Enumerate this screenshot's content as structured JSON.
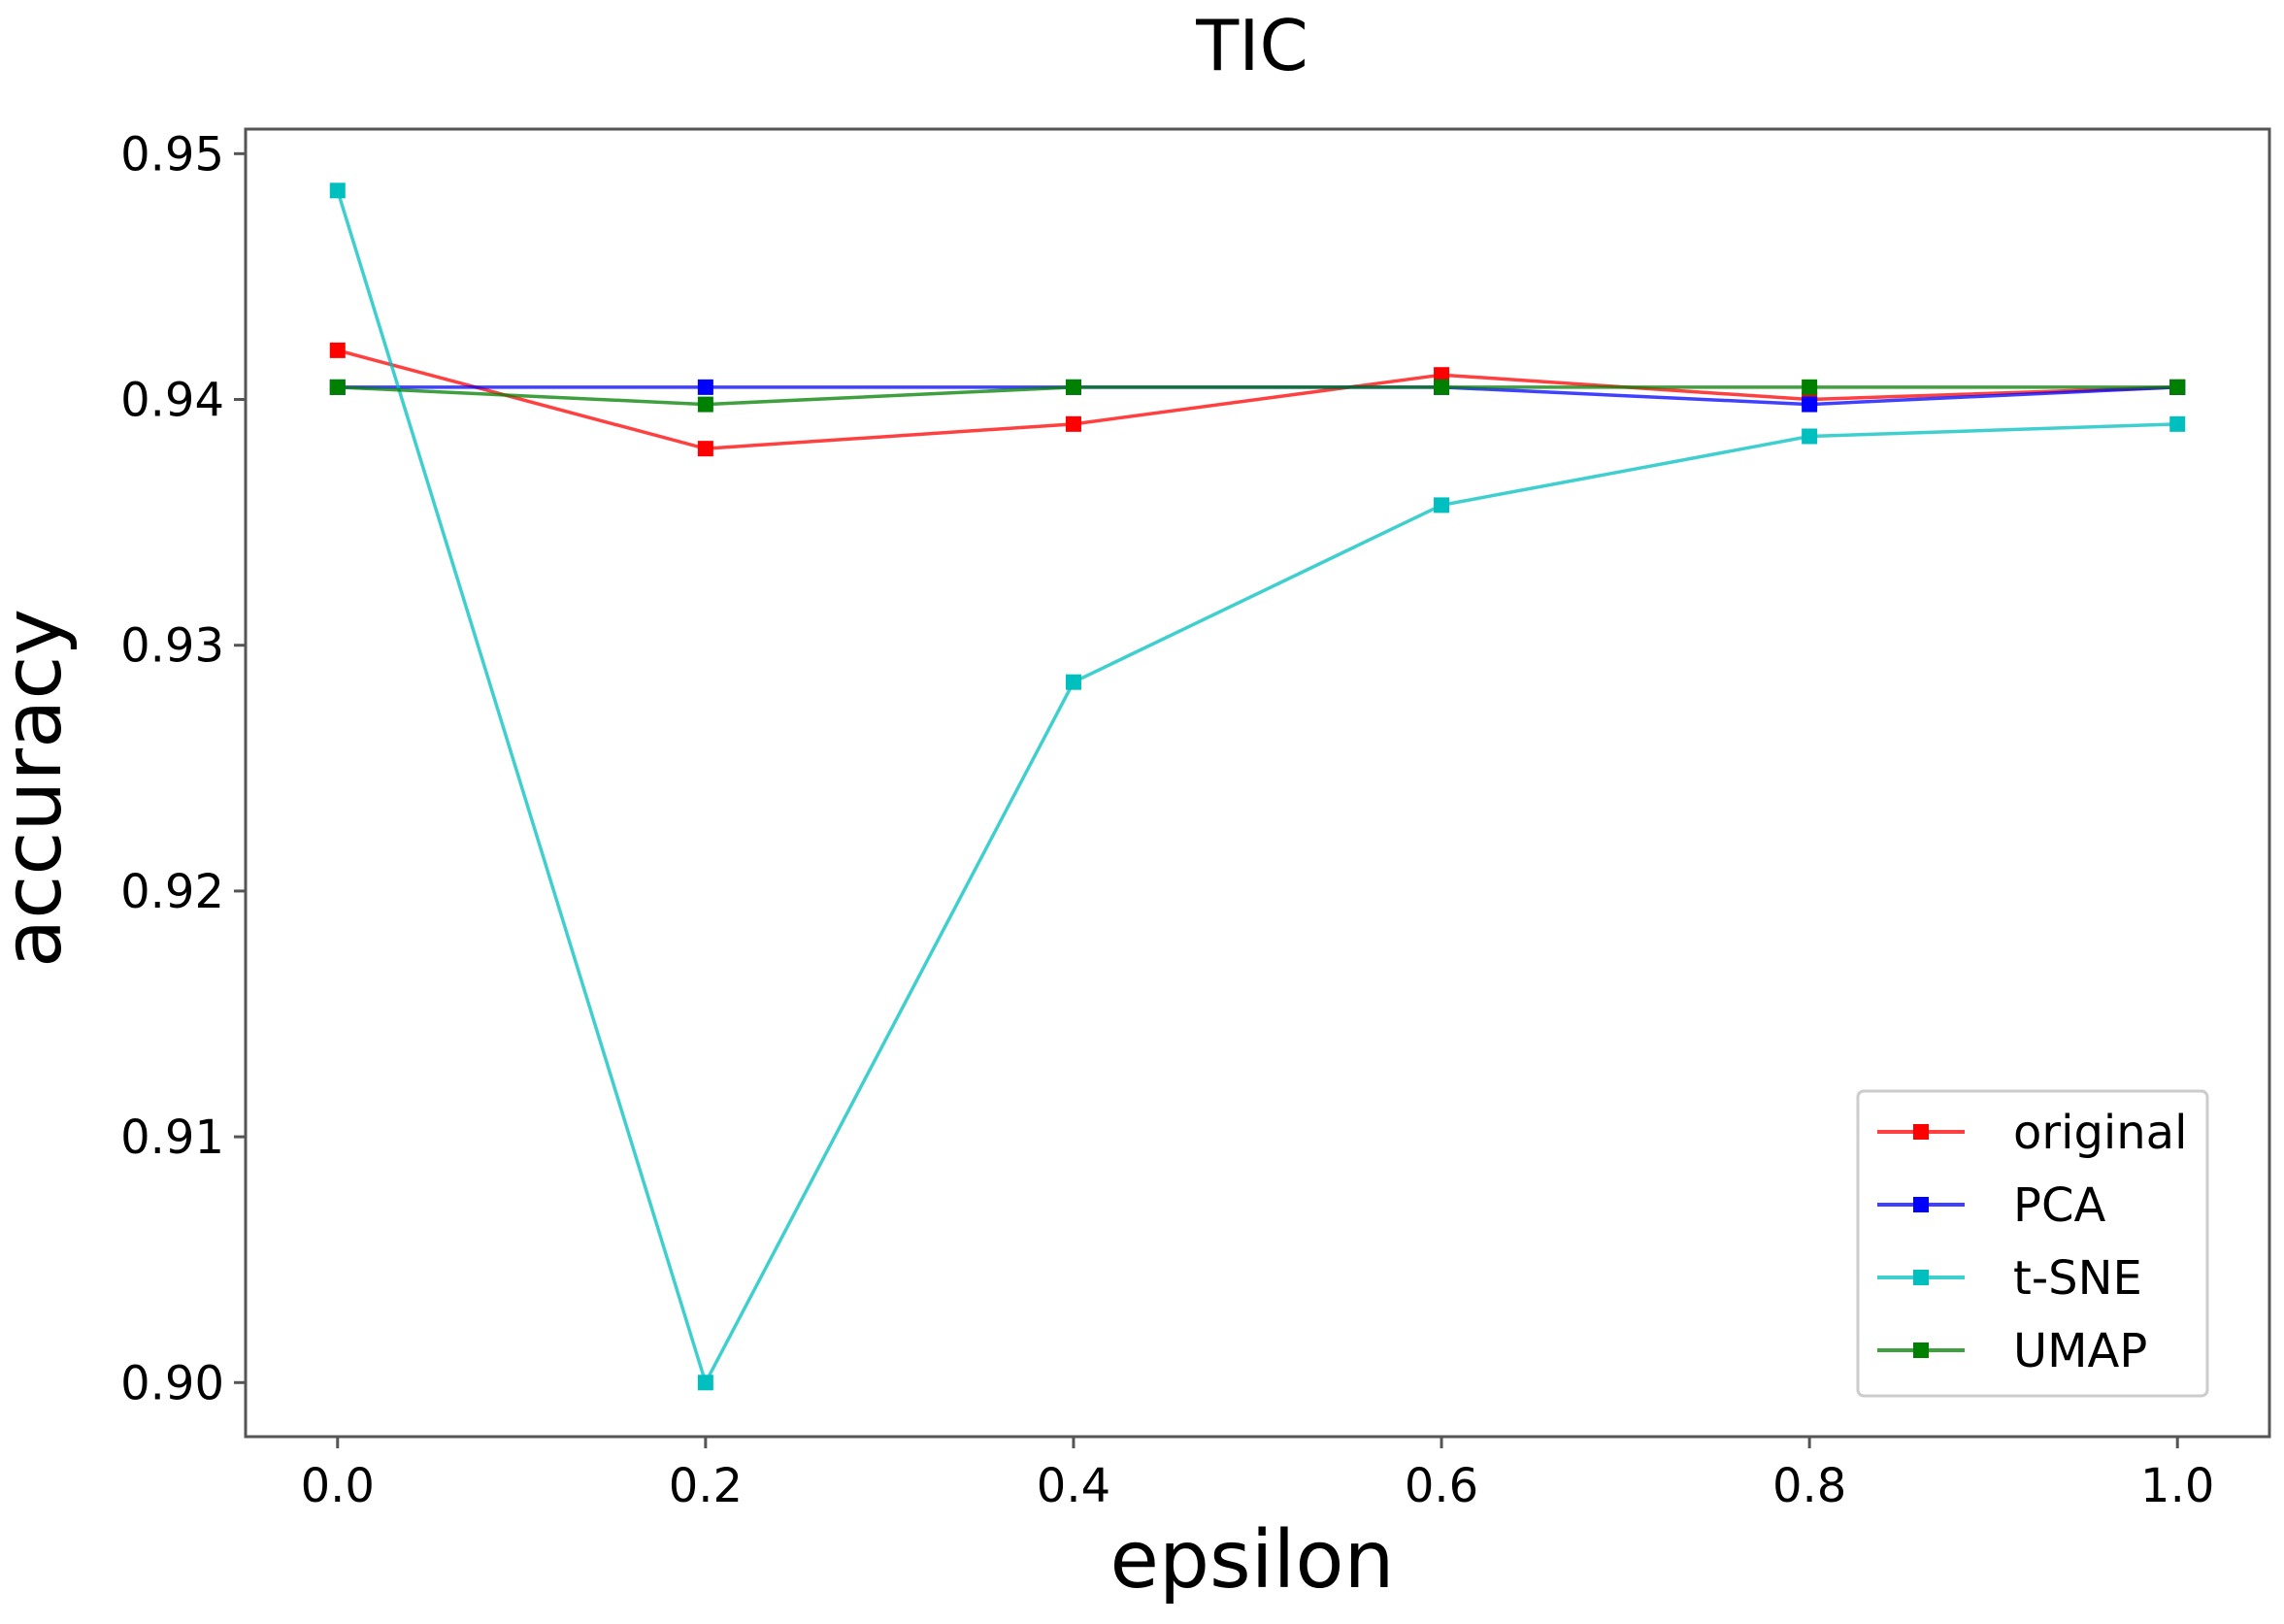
{
  "chart_data": {
    "type": "line",
    "title": "TIC",
    "xlabel": "epsilon",
    "ylabel": "accuracy",
    "x": [
      0.0,
      0.2,
      0.4,
      0.6,
      0.8,
      1.0
    ],
    "x_tick_labels": [
      "0.0",
      "0.2",
      "0.4",
      "0.6",
      "0.8",
      "1.0"
    ],
    "y_ticks": [
      0.9,
      0.91,
      0.92,
      0.93,
      0.94,
      0.95
    ],
    "y_tick_labels": [
      "0.90",
      "0.91",
      "0.92",
      "0.93",
      "0.94",
      "0.95"
    ],
    "xlim": [
      -0.05,
      1.05
    ],
    "ylim": [
      0.8978,
      0.951
    ],
    "grid": false,
    "legend_position": "lower-right",
    "series": [
      {
        "name": "original",
        "color": "#ff0000",
        "values": [
          0.942,
          0.938,
          0.939,
          0.941,
          0.94,
          0.9405
        ]
      },
      {
        "name": "PCA",
        "color": "#0000ff",
        "values": [
          0.9405,
          0.9405,
          0.9405,
          0.9405,
          0.9398,
          0.9405
        ]
      },
      {
        "name": "t-SNE",
        "color": "#00bfbf",
        "values": [
          0.9485,
          0.9,
          0.9285,
          0.9357,
          0.9385,
          0.939
        ]
      },
      {
        "name": "UMAP",
        "color": "#008000",
        "values": [
          0.9405,
          0.9398,
          0.9405,
          0.9405,
          0.9405,
          0.9405
        ]
      }
    ]
  }
}
